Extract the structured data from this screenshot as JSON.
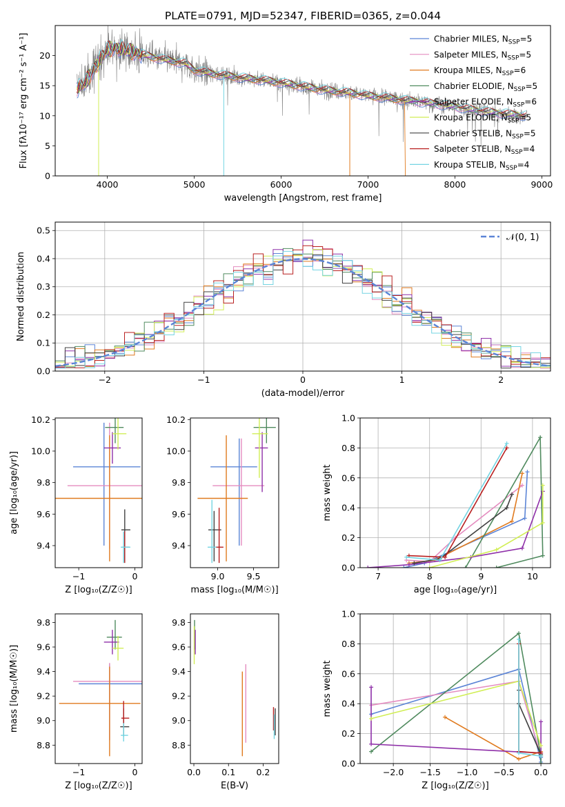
{
  "chart_data": [
    {
      "id": "spec",
      "type": "line",
      "title": "PLATE=0791, MJD=52347, FIBERID=0365, z=0.044",
      "xlabel": "wavelength [Angstrom, rest frame]",
      "ylabel": "Flux [fλ10⁻¹⁷ erg cm⁻² s⁻¹ A⁻¹]",
      "xlim": [
        3400,
        9100
      ],
      "ylim": [
        0,
        25
      ],
      "xticks": [
        4000,
        5000,
        6000,
        7000,
        8000,
        9000
      ],
      "yticks": [
        0,
        5,
        10,
        15,
        20
      ],
      "legend_position": "top-right",
      "data_color": "#808080",
      "data_name": "observed spectrum (grey, noisy)",
      "series": [
        {
          "name": "Chabrier MILES, N_SSP=5",
          "color": "#5b84d6"
        },
        {
          "name": "Salpeter MILES, N_SSP=5",
          "color": "#e48bbf"
        },
        {
          "name": "Kroupa MILES, N_SSP=6",
          "color": "#e07a1e"
        },
        {
          "name": "Chabrier ELODIE, N_SSP=5",
          "color": "#4f8a5e"
        },
        {
          "name": "Salpeter ELODIE, N_SSP=6",
          "color": "#8e2fa8"
        },
        {
          "name": "Kroupa ELODIE, N_SSP=5",
          "color": "#d1ee55"
        },
        {
          "name": "Chabrier STELIB, N_SSP=5",
          "color": "#404040"
        },
        {
          "name": "Salpeter STELIB, N_SSP=4",
          "color": "#b81e1e"
        },
        {
          "name": "Kroupa STELIB, N_SSP=4",
          "color": "#73d4e2"
        }
      ],
      "continuum": {
        "x": [
          3650,
          3750,
          3900,
          4000,
          4100,
          4300,
          4500,
          4700,
          4900,
          5000,
          5200,
          5400,
          5600,
          5800,
          6000,
          6200,
          6400,
          6600,
          6800,
          7000,
          7200,
          7400,
          7600,
          7800,
          8000,
          8200,
          8400,
          8600,
          8800
        ],
        "y": [
          14.5,
          15.5,
          19.0,
          21.0,
          21.3,
          20.6,
          19.8,
          19.2,
          18.7,
          17.6,
          17.0,
          16.6,
          16.2,
          15.9,
          15.5,
          15.0,
          14.5,
          14.1,
          13.8,
          13.3,
          13.0,
          12.6,
          12.3,
          11.9,
          11.5,
          11.0,
          10.6,
          10.3,
          10.0
        ]
      }
    },
    {
      "id": "hist",
      "type": "line",
      "xlabel": "(data-model)/error",
      "ylabel": "Normed distribution",
      "xlim": [
        -2.5,
        2.5
      ],
      "ylim": [
        0,
        0.53
      ],
      "xticks": [
        -2,
        -1,
        0,
        1,
        2
      ],
      "yticks": [
        0.0,
        0.1,
        0.2,
        0.3,
        0.4,
        0.5
      ],
      "legend_position": "top-right",
      "reference_curve": {
        "name": "𝒩(0, 1)",
        "color": "#5b84d6",
        "style": "dashed"
      }
    },
    {
      "id": "p_zage",
      "type": "scatter",
      "xlabel": "Z [log₁₀(Z/Z☉)]",
      "ylabel": "age  [log₁₀(age/yr)]",
      "xlim": [
        -1.42,
        0.13
      ],
      "ylim": [
        9.26,
        10.21
      ],
      "xticks": [
        -1,
        0
      ],
      "yticks": [
        9.4,
        9.6,
        9.8,
        10.0,
        10.2
      ],
      "errorbars": [
        {
          "x": -0.55,
          "y": 9.9,
          "xerr": [
            0.55,
            0.65
          ],
          "yerr": [
            0.5,
            0.28
          ],
          "color": "#5b84d6"
        },
        {
          "x": -0.45,
          "y": 9.78,
          "xerr": [
            0.75,
            0.6
          ],
          "yerr": [
            0.4,
            0.4
          ],
          "color": "#e48bbf"
        },
        {
          "x": -0.45,
          "y": 9.7,
          "xerr": [
            0.98,
            0.7
          ],
          "yerr": [
            0.4,
            0.4
          ],
          "color": "#e07a1e"
        },
        {
          "x": -0.35,
          "y": 10.15,
          "xerr": [
            0.18,
            0.15
          ],
          "yerr": [
            0.1,
            0.08
          ],
          "color": "#4f8a5e"
        },
        {
          "x": -0.4,
          "y": 10.02,
          "xerr": [
            0.15,
            0.15
          ],
          "yerr": [
            0.1,
            0.1
          ],
          "color": "#8e2fa8"
        },
        {
          "x": -0.3,
          "y": 10.11,
          "xerr": [
            0.1,
            0.15
          ],
          "yerr": [
            0.1,
            0.1
          ],
          "color": "#d1ee55"
        },
        {
          "x": -0.18,
          "y": 9.5,
          "xerr": [
            0.06,
            0.1
          ],
          "yerr": [
            0.2,
            0.13
          ],
          "color": "#404040"
        },
        {
          "x": -0.18,
          "y": 9.39,
          "xerr": [
            0.04,
            0.08
          ],
          "yerr": [
            0.1,
            0.1
          ],
          "color": "#b81e1e"
        },
        {
          "x": -0.2,
          "y": 9.39,
          "xerr": [
            0.05,
            0.12
          ],
          "yerr": [
            0.1,
            0.1
          ],
          "color": "#73d4e2"
        }
      ]
    },
    {
      "id": "p_massage",
      "type": "scatter",
      "xlabel": "mass [log₁₀(M/M☉)]",
      "ylabel": "",
      "xlim": [
        8.62,
        9.85
      ],
      "ylim": [
        9.26,
        10.21
      ],
      "xticks": [
        9.0,
        9.5
      ],
      "yticks": [
        9.4,
        9.6,
        9.8,
        10.0,
        10.2
      ],
      "errorbars": [
        {
          "x": 9.3,
          "y": 9.9,
          "xerr": [
            0.4,
            0.25
          ],
          "yerr": [
            0.5,
            0.18
          ],
          "color": "#5b84d6"
        },
        {
          "x": 9.33,
          "y": 9.78,
          "xerr": [
            0.4,
            0.32
          ],
          "yerr": [
            0.38,
            0.3
          ],
          "color": "#e48bbf"
        },
        {
          "x": 9.12,
          "y": 9.7,
          "xerr": [
            0.4,
            0.3
          ],
          "yerr": [
            0.4,
            0.4
          ],
          "color": "#e07a1e"
        },
        {
          "x": 9.68,
          "y": 10.15,
          "xerr": [
            0.18,
            0.13
          ],
          "yerr": [
            0.1,
            0.08
          ],
          "color": "#4f8a5e"
        },
        {
          "x": 9.62,
          "y": 10.02,
          "xerr": [
            0.1,
            0.08
          ],
          "yerr": [
            0.28,
            0.1
          ],
          "color": "#8e2fa8"
        },
        {
          "x": 9.58,
          "y": 10.11,
          "xerr": [
            0.1,
            0.12
          ],
          "yerr": [
            0.28,
            0.1
          ],
          "color": "#d1ee55"
        },
        {
          "x": 8.95,
          "y": 9.5,
          "xerr": [
            0.08,
            0.1
          ],
          "yerr": [
            0.2,
            0.12
          ],
          "color": "#404040"
        },
        {
          "x": 9.02,
          "y": 9.39,
          "xerr": [
            0.06,
            0.06
          ],
          "yerr": [
            0.1,
            0.25
          ],
          "color": "#b81e1e"
        },
        {
          "x": 8.92,
          "y": 9.39,
          "xerr": [
            0.06,
            0.06
          ],
          "yerr": [
            0.1,
            0.3
          ],
          "color": "#73d4e2"
        }
      ]
    },
    {
      "id": "p_agew",
      "type": "line",
      "xlabel": "age  [log₁₀(age/yr)]",
      "ylabel": "mass weight",
      "xlim": [
        6.65,
        10.35
      ],
      "ylim": [
        0,
        1
      ],
      "xticks": [
        7,
        8,
        9,
        10
      ],
      "yticks": [
        0.0,
        0.2,
        0.4,
        0.6,
        0.8,
        1.0
      ],
      "series": [
        {
          "color": "#5b84d6",
          "x": [
            7.5,
            7.9,
            9.85,
            9.9
          ],
          "y": [
            0.0,
            0.03,
            0.33,
            0.64
          ]
        },
        {
          "color": "#e48bbf",
          "x": [
            7.55,
            8.0,
            8.5,
            9.8
          ],
          "y": [
            0.05,
            0.04,
            0.2,
            0.55
          ]
        },
        {
          "color": "#e07a1e",
          "x": [
            7.6,
            8.1,
            9.6,
            9.8
          ],
          "y": [
            0.03,
            0.05,
            0.31,
            0.63
          ]
        },
        {
          "color": "#4f8a5e",
          "x": [
            8.7,
            10.15,
            10.2,
            9.3
          ],
          "y": [
            0.0,
            0.87,
            0.08,
            0.0
          ]
        },
        {
          "color": "#8e2fa8",
          "x": [
            6.8,
            7.6,
            8.8,
            9.8,
            10.2
          ],
          "y": [
            0.0,
            0.02,
            0.07,
            0.13,
            0.51
          ]
        },
        {
          "color": "#d1ee55",
          "x": [
            8.0,
            9.3,
            10.2,
            10.2
          ],
          "y": [
            0.0,
            0.12,
            0.3,
            0.55
          ]
        },
        {
          "color": "#404040",
          "x": [
            7.7,
            8.2,
            9.5,
            9.6
          ],
          "y": [
            0.03,
            0.06,
            0.4,
            0.49
          ]
        },
        {
          "color": "#b81e1e",
          "x": [
            7.6,
            8.3,
            9.5
          ],
          "y": [
            0.08,
            0.07,
            0.8
          ]
        },
        {
          "color": "#73d4e2",
          "x": [
            7.55,
            8.2,
            9.5
          ],
          "y": [
            0.07,
            0.05,
            0.83
          ]
        }
      ]
    },
    {
      "id": "p_zmass",
      "type": "scatter",
      "xlabel": "Z [log₁₀(Z/Z☉)]",
      "ylabel": "mass [log₁₀(M/M☉)]",
      "xlim": [
        -1.42,
        0.13
      ],
      "ylim": [
        8.65,
        9.87
      ],
      "xticks": [
        -1,
        0
      ],
      "yticks": [
        8.8,
        9.0,
        9.2,
        9.4,
        9.6,
        9.8
      ],
      "errorbars": [
        {
          "x": -0.45,
          "y": 9.3,
          "xerr": [
            0.55,
            0.6
          ],
          "yerr": [
            0.46,
            0.16
          ],
          "color": "#5b84d6"
        },
        {
          "x": -0.45,
          "y": 9.32,
          "xerr": [
            0.65,
            0.65
          ],
          "yerr": [
            0.48,
            0.15
          ],
          "color": "#e48bbf"
        },
        {
          "x": -0.45,
          "y": 9.14,
          "xerr": [
            0.9,
            0.55
          ],
          "yerr": [
            0.43,
            0.3
          ],
          "color": "#e07a1e"
        },
        {
          "x": -0.35,
          "y": 9.68,
          "xerr": [
            0.15,
            0.12
          ],
          "yerr": [
            0.1,
            0.14
          ],
          "color": "#4f8a5e"
        },
        {
          "x": -0.4,
          "y": 9.64,
          "xerr": [
            0.15,
            0.12
          ],
          "yerr": [
            0.1,
            0.1
          ],
          "color": "#8e2fa8"
        },
        {
          "x": -0.3,
          "y": 9.59,
          "xerr": [
            0.1,
            0.1
          ],
          "yerr": [
            0.1,
            0.1
          ],
          "color": "#d1ee55"
        },
        {
          "x": -0.2,
          "y": 8.95,
          "xerr": [
            0.06,
            0.1
          ],
          "yerr": [
            0.08,
            0.15
          ],
          "color": "#404040"
        },
        {
          "x": -0.2,
          "y": 9.02,
          "xerr": [
            0.04,
            0.1
          ],
          "yerr": [
            0.08,
            0.14
          ],
          "color": "#b81e1e"
        },
        {
          "x": -0.2,
          "y": 8.88,
          "xerr": [
            0.05,
            0.08
          ],
          "yerr": [
            0.05,
            0.1
          ],
          "color": "#73d4e2"
        }
      ]
    },
    {
      "id": "p_ebv",
      "type": "scatter",
      "xlabel": "E(B-V)",
      "ylabel": "",
      "xlim": [
        -0.01,
        0.245
      ],
      "ylim": [
        8.65,
        9.87
      ],
      "xticks": [
        0.0,
        0.1,
        0.2
      ],
      "yticks": [
        8.8,
        9.0,
        9.2,
        9.4,
        9.6,
        9.8
      ],
      "errorbars": [
        {
          "x": 0.002,
          "y": 9.68,
          "yerr": [
            0.1,
            0.14
          ],
          "color": "#4f8a5e"
        },
        {
          "x": 0.001,
          "y": 9.59,
          "yerr": [
            0.13,
            0.18
          ],
          "color": "#d1ee55"
        },
        {
          "x": 0.004,
          "y": 9.64,
          "yerr": [
            0.1,
            0.1
          ],
          "color": "#8e2fa8"
        },
        {
          "x": 0.14,
          "y": 9.14,
          "yerr": [
            0.43,
            0.26
          ],
          "color": "#e07a1e"
        },
        {
          "x": 0.15,
          "y": 9.15,
          "yerr": [
            0.33,
            0.31
          ],
          "color": "#e48bbf"
        },
        {
          "x": 0.23,
          "y": 9.0,
          "yerr": [
            0.08,
            0.11
          ],
          "color": "#b81e1e"
        },
        {
          "x": 0.235,
          "y": 8.98,
          "yerr": [
            0.1,
            0.12
          ],
          "color": "#404040"
        },
        {
          "x": 0.232,
          "y": 8.95,
          "yerr": [
            0.1,
            0.1
          ],
          "color": "#73d4e2"
        }
      ]
    },
    {
      "id": "p_zw",
      "type": "line",
      "xlabel": "Z [log₁₀(Z/Z☉)]",
      "ylabel": "mass weight",
      "xlim": [
        -2.45,
        0.13
      ],
      "ylim": [
        0,
        1
      ],
      "xticks": [
        -2.0,
        -1.5,
        -1.0,
        -0.5,
        0.0
      ],
      "yticks": [
        0.0,
        0.2,
        0.4,
        0.6,
        0.8,
        1.0
      ],
      "series": [
        {
          "color": "#5b84d6",
          "x": [
            -2.3,
            -0.3,
            0.0,
            0.0
          ],
          "y": [
            0.33,
            0.63,
            0.01,
            0.04
          ]
        },
        {
          "color": "#e48bbf",
          "x": [
            -2.3,
            -0.3,
            0.0
          ],
          "y": [
            0.39,
            0.55,
            0.05
          ]
        },
        {
          "color": "#e07a1e",
          "x": [
            -1.3,
            -0.3,
            0.0
          ],
          "y": [
            0.31,
            0.03,
            0.08
          ]
        },
        {
          "color": "#4f8a5e",
          "x": [
            -2.3,
            -0.3,
            0.0,
            0.0
          ],
          "y": [
            0.08,
            0.87,
            0.05,
            0.0
          ]
        },
        {
          "color": "#8e2fa8",
          "x": [
            -2.3,
            -2.3,
            0.0,
            0.0
          ],
          "y": [
            0.51,
            0.13,
            0.07,
            0.28
          ]
        },
        {
          "color": "#d1ee55",
          "x": [
            -2.3,
            -0.3,
            0.0
          ],
          "y": [
            0.3,
            0.55,
            0.12
          ]
        },
        {
          "color": "#404040",
          "x": [
            -0.3,
            -0.3,
            0.0
          ],
          "y": [
            0.49,
            0.4,
            0.06
          ]
        },
        {
          "color": "#b81e1e",
          "x": [
            -0.3,
            -0.3,
            0.0
          ],
          "y": [
            0.8,
            0.08,
            0.07
          ]
        },
        {
          "color": "#73d4e2",
          "x": [
            -0.3,
            -0.3,
            0.0
          ],
          "y": [
            0.83,
            0.07,
            0.05
          ]
        }
      ]
    }
  ]
}
